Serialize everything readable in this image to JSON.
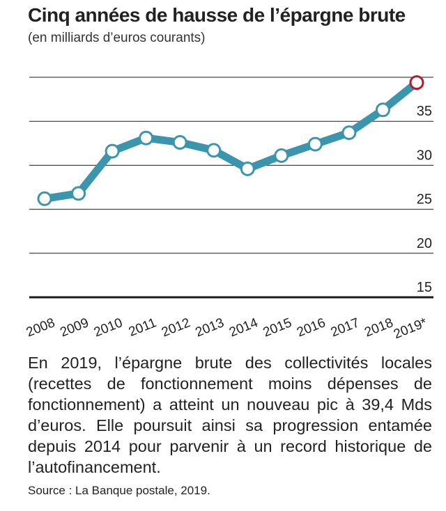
{
  "title": "Cinq années de hausse de l’épargne brute",
  "subtitle": "(en milliards d’euros courants)",
  "description": "En 2019, l’épargne brute des collectivités locales (recettes de fonctionnement moins dépenses de fonctionnement) a atteint un nouveau pic à 39,4 Mds d’euros. Elle poursuit ainsi sa progression entamée depuis 2014 pour parvenir à un record historique de l’autofinancement.",
  "source": "Source : La Banque postale, 2019.",
  "colors": {
    "line": "#3a95ad",
    "marker_fill": "#ffffff",
    "highlight": "#b5192a",
    "grid": "#1a1a1a"
  },
  "chart_data": {
    "type": "line",
    "categories": [
      "2008",
      "2009",
      "2010",
      "2011",
      "2012",
      "2013",
      "2014",
      "2015",
      "2016",
      "2017",
      "2018",
      "2019*"
    ],
    "values": [
      26.2,
      26.8,
      31.6,
      33.1,
      32.6,
      31.7,
      29.6,
      31.1,
      32.4,
      33.7,
      36.3,
      39.4
    ],
    "ylim": [
      15,
      40
    ],
    "yticks": [
      15,
      20,
      25,
      30,
      35
    ],
    "ytick_labels": [
      "15",
      "20",
      "25",
      "30",
      "35"
    ],
    "xlabel": "",
    "ylabel": "",
    "grid": true,
    "highlight_last_point": true
  }
}
